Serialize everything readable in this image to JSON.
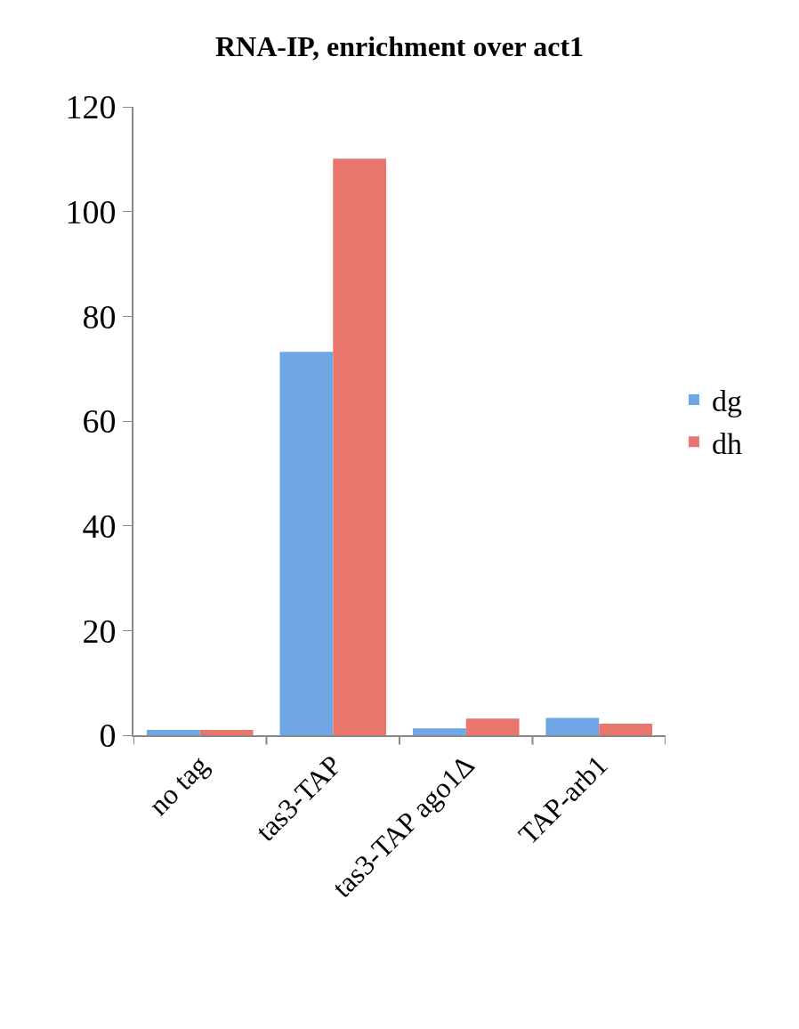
{
  "chart_data": {
    "type": "bar",
    "title": "RNA-IP, enrichment over act1",
    "categories": [
      "no tag",
      "tas3-TAP",
      "tas3-TAP ago1Δ",
      "TAP-arb1"
    ],
    "series": [
      {
        "name": "dg",
        "color": "#6ea6e6",
        "values": [
          1.0,
          73.2,
          1.3,
          3.3
        ]
      },
      {
        "name": "dh",
        "color": "#e8766d",
        "values": [
          1.0,
          110.1,
          3.2,
          2.2
        ]
      }
    ],
    "ylim": [
      0,
      120
    ],
    "yticks": [
      0,
      20,
      40,
      60,
      80,
      100,
      120
    ],
    "legend": "right"
  }
}
